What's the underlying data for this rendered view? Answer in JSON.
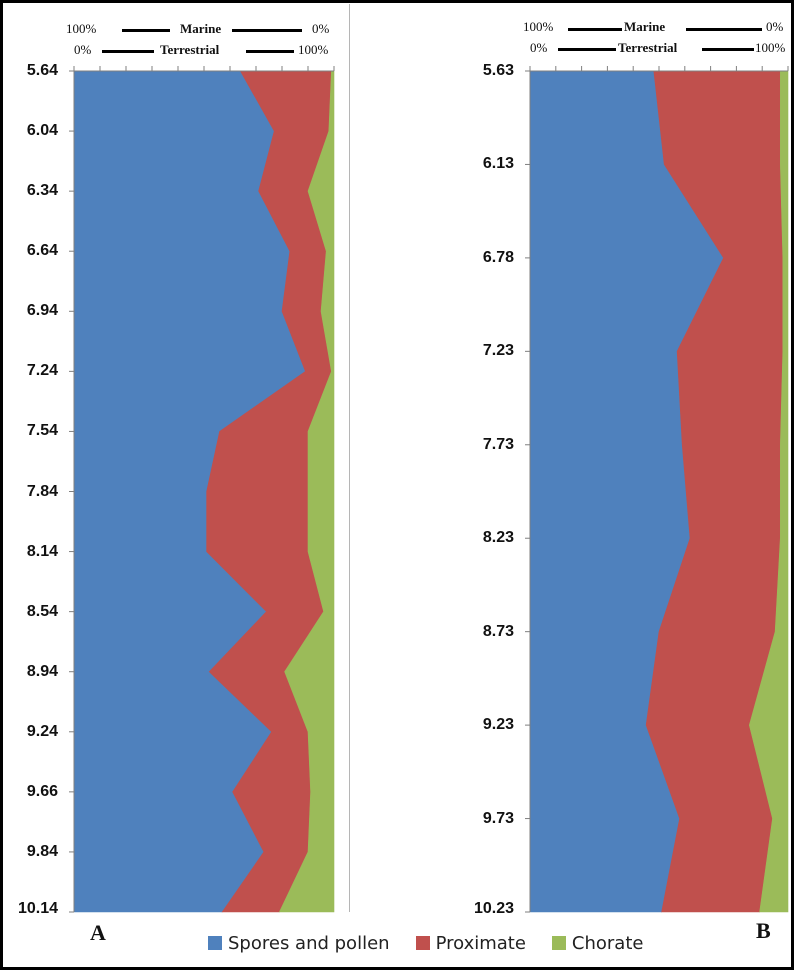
{
  "figure": {
    "panel_labels": [
      "A",
      "B"
    ],
    "legend": [
      {
        "label": "Spores and pollen",
        "color": "#4F81BD"
      },
      {
        "label": "Proximate",
        "color": "#C0504D"
      },
      {
        "label": "Chorate",
        "color": "#9BBB59"
      }
    ]
  },
  "chart_data": [
    {
      "type": "area",
      "panel": "A",
      "orientation": "vertical-depth",
      "stacking": "percent",
      "y_tick_labels": [
        "5.64",
        "6.04",
        "6.34",
        "6.64",
        "6.94",
        "7.24",
        "7.54",
        "7.84",
        "8.14",
        "8.54",
        "8.94",
        "9.24",
        "9.66",
        "9.84",
        "10.14"
      ],
      "series": [
        {
          "name": "Spores and pollen",
          "color": "#4F81BD",
          "values": [
            64,
            77,
            71,
            83,
            80,
            89,
            56,
            51,
            51,
            74,
            52,
            76,
            61,
            73,
            57
          ]
        },
        {
          "name": "Proximate",
          "color": "#C0504D",
          "values": [
            35,
            21,
            19,
            14,
            15,
            10,
            34,
            39,
            39,
            22,
            29,
            14,
            30,
            17,
            22
          ]
        },
        {
          "name": "Chorate",
          "color": "#9BBB59",
          "values": [
            1,
            2,
            10,
            3,
            5,
            1,
            10,
            10,
            10,
            4,
            19,
            10,
            9,
            10,
            21
          ]
        }
      ],
      "top_scale": {
        "marine": {
          "title": "Marine",
          "left": "100%",
          "right": "0%"
        },
        "terrestrial": {
          "title": "Terrestrial",
          "left": "0%",
          "right": "100%"
        }
      },
      "xlim": [
        0,
        100
      ]
    },
    {
      "type": "area",
      "panel": "B",
      "orientation": "vertical-depth",
      "stacking": "percent",
      "y_tick_labels": [
        "5.63",
        "6.13",
        "6.78",
        "7.23",
        "7.73",
        "8.23",
        "8.73",
        "9.23",
        "9.73",
        "10.23"
      ],
      "series": [
        {
          "name": "Spores and pollen",
          "color": "#4F81BD",
          "values": [
            48,
            52,
            75,
            57,
            59,
            62,
            50,
            45,
            58,
            51
          ]
        },
        {
          "name": "Proximate",
          "color": "#C0504D",
          "values": [
            49,
            45,
            23,
            41,
            38,
            35,
            45,
            40,
            36,
            38
          ]
        },
        {
          "name": "Chorate",
          "color": "#9BBB59",
          "values": [
            3,
            3,
            2,
            2,
            3,
            3,
            5,
            15,
            6,
            11
          ]
        }
      ],
      "top_scale": {
        "marine": {
          "title": "Marine",
          "left": "100%",
          "right": "0%"
        },
        "terrestrial": {
          "title": "Terrestrial",
          "left": "0%",
          "right": "100%"
        }
      },
      "xlim": [
        0,
        100
      ]
    }
  ]
}
